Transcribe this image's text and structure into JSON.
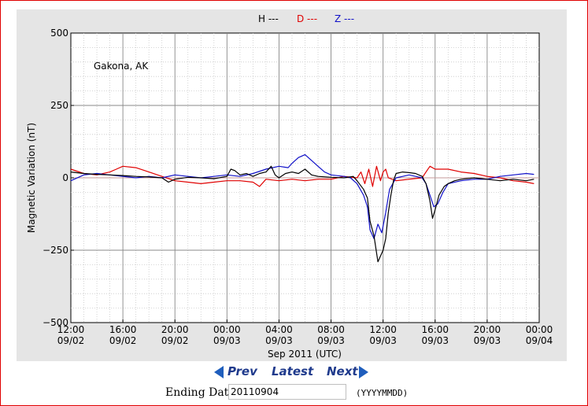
{
  "chart_data": {
    "type": "line",
    "station_label": "Gakona, AK",
    "ylabel": "Magnetic Variation (nT)",
    "xlabel": "Sep 2011 (UTC)",
    "ylim": [
      -500,
      500
    ],
    "yticks": [
      -500,
      -250,
      0,
      250,
      500
    ],
    "xlim": [
      0,
      36
    ],
    "xticks": [
      {
        "x": 0,
        "time": "12:00",
        "date": "09/02"
      },
      {
        "x": 4,
        "time": "16:00",
        "date": "09/02"
      },
      {
        "x": 8,
        "time": "20:00",
        "date": "09/02"
      },
      {
        "x": 12,
        "time": "00:00",
        "date": "09/03"
      },
      {
        "x": 16,
        "time": "04:00",
        "date": "09/03"
      },
      {
        "x": 20,
        "time": "08:00",
        "date": "09/03"
      },
      {
        "x": 24,
        "time": "12:00",
        "date": "09/03"
      },
      {
        "x": 28,
        "time": "16:00",
        "date": "09/03"
      },
      {
        "x": 32,
        "time": "20:00",
        "date": "09/03"
      },
      {
        "x": 36,
        "time": "00:00",
        "date": "09/04"
      }
    ],
    "grid": true,
    "legend_position": "top-center",
    "series": [
      {
        "name": "H",
        "legend_text": "H ---",
        "color": "#000000",
        "points": [
          [
            0,
            20
          ],
          [
            1,
            15
          ],
          [
            2,
            12
          ],
          [
            3,
            10
          ],
          [
            4,
            8
          ],
          [
            5,
            5
          ],
          [
            6,
            3
          ],
          [
            7,
            0
          ],
          [
            7.5,
            -15
          ],
          [
            8,
            -5
          ],
          [
            9,
            2
          ],
          [
            10,
            0
          ],
          [
            11,
            -3
          ],
          [
            12,
            5
          ],
          [
            12.3,
            30
          ],
          [
            12.6,
            25
          ],
          [
            13,
            10
          ],
          [
            13.5,
            15
          ],
          [
            14,
            5
          ],
          [
            14.5,
            15
          ],
          [
            15,
            20
          ],
          [
            15.4,
            40
          ],
          [
            15.7,
            10
          ],
          [
            16,
            0
          ],
          [
            16.5,
            15
          ],
          [
            17,
            20
          ],
          [
            17.5,
            15
          ],
          [
            18,
            30
          ],
          [
            18.5,
            10
          ],
          [
            19,
            5
          ],
          [
            20,
            2
          ],
          [
            21,
            0
          ],
          [
            21.7,
            5
          ],
          [
            22,
            -10
          ],
          [
            22.5,
            -40
          ],
          [
            22.8,
            -70
          ],
          [
            23,
            -150
          ],
          [
            23.3,
            -200
          ],
          [
            23.6,
            -290
          ],
          [
            23.8,
            -270
          ],
          [
            24,
            -250
          ],
          [
            24.2,
            -210
          ],
          [
            24.4,
            -120
          ],
          [
            24.6,
            -60
          ],
          [
            24.8,
            -10
          ],
          [
            25,
            15
          ],
          [
            25.5,
            20
          ],
          [
            26,
            18
          ],
          [
            26.5,
            15
          ],
          [
            27,
            5
          ],
          [
            27.3,
            -20
          ],
          [
            27.6,
            -80
          ],
          [
            27.8,
            -140
          ],
          [
            28,
            -110
          ],
          [
            28.3,
            -60
          ],
          [
            28.7,
            -30
          ],
          [
            29,
            -20
          ],
          [
            29.5,
            -10
          ],
          [
            30,
            -5
          ],
          [
            31,
            0
          ],
          [
            32,
            -5
          ],
          [
            33,
            -10
          ],
          [
            34,
            -5
          ],
          [
            35,
            -10
          ],
          [
            35.6,
            -5
          ]
        ]
      },
      {
        "name": "D",
        "legend_text": "D ---",
        "color": "#e00000",
        "points": [
          [
            0,
            30
          ],
          [
            1,
            15
          ],
          [
            2,
            10
          ],
          [
            3,
            20
          ],
          [
            3.5,
            30
          ],
          [
            4,
            40
          ],
          [
            5,
            35
          ],
          [
            6,
            20
          ],
          [
            7,
            5
          ],
          [
            8,
            -10
          ],
          [
            9,
            -15
          ],
          [
            10,
            -20
          ],
          [
            11,
            -15
          ],
          [
            12,
            -10
          ],
          [
            13,
            -10
          ],
          [
            14,
            -15
          ],
          [
            14.5,
            -30
          ],
          [
            15,
            -5
          ],
          [
            16,
            -10
          ],
          [
            17,
            -5
          ],
          [
            18,
            -10
          ],
          [
            19,
            -5
          ],
          [
            20,
            -5
          ],
          [
            21,
            5
          ],
          [
            22,
            0
          ],
          [
            22.3,
            20
          ],
          [
            22.6,
            -20
          ],
          [
            22.9,
            30
          ],
          [
            23.2,
            -30
          ],
          [
            23.5,
            40
          ],
          [
            23.8,
            -10
          ],
          [
            24,
            20
          ],
          [
            24.2,
            30
          ],
          [
            24.4,
            0
          ],
          [
            25,
            -10
          ],
          [
            26,
            -5
          ],
          [
            27,
            0
          ],
          [
            27.3,
            20
          ],
          [
            27.6,
            40
          ],
          [
            28,
            30
          ],
          [
            29,
            30
          ],
          [
            30,
            20
          ],
          [
            31,
            15
          ],
          [
            32,
            5
          ],
          [
            33,
            0
          ],
          [
            34,
            -10
          ],
          [
            35,
            -15
          ],
          [
            35.6,
            -20
          ]
        ]
      },
      {
        "name": "Z",
        "legend_text": "Z ---",
        "color": "#1010c8",
        "points": [
          [
            0,
            -10
          ],
          [
            1,
            10
          ],
          [
            2,
            15
          ],
          [
            3,
            10
          ],
          [
            4,
            5
          ],
          [
            5,
            0
          ],
          [
            6,
            5
          ],
          [
            7,
            0
          ],
          [
            8,
            10
          ],
          [
            9,
            5
          ],
          [
            10,
            0
          ],
          [
            11,
            5
          ],
          [
            12,
            10
          ],
          [
            13,
            5
          ],
          [
            14,
            15
          ],
          [
            15,
            30
          ],
          [
            16,
            40
          ],
          [
            16.7,
            35
          ],
          [
            17,
            50
          ],
          [
            17.5,
            70
          ],
          [
            18,
            80
          ],
          [
            18.5,
            60
          ],
          [
            19,
            40
          ],
          [
            19.5,
            20
          ],
          [
            20,
            10
          ],
          [
            21,
            5
          ],
          [
            21.5,
            0
          ],
          [
            22,
            -20
          ],
          [
            22.5,
            -60
          ],
          [
            22.8,
            -100
          ],
          [
            23,
            -180
          ],
          [
            23.3,
            -210
          ],
          [
            23.6,
            -160
          ],
          [
            23.9,
            -190
          ],
          [
            24.2,
            -120
          ],
          [
            24.5,
            -40
          ],
          [
            25,
            0
          ],
          [
            25.5,
            5
          ],
          [
            26,
            10
          ],
          [
            26.5,
            5
          ],
          [
            27,
            0
          ],
          [
            27.3,
            -20
          ],
          [
            27.6,
            -60
          ],
          [
            27.9,
            -100
          ],
          [
            28.2,
            -90
          ],
          [
            28.6,
            -50
          ],
          [
            29,
            -20
          ],
          [
            30,
            -10
          ],
          [
            31,
            -5
          ],
          [
            32,
            -5
          ],
          [
            33,
            5
          ],
          [
            34,
            10
          ],
          [
            35,
            15
          ],
          [
            35.6,
            12
          ]
        ]
      }
    ]
  },
  "nav": {
    "prev_label": "Prev",
    "latest_label": "Latest",
    "next_label": "Next"
  },
  "date_form": {
    "label": "Ending Date:",
    "value": "20110904",
    "format_hint": "(YYYYMMDD)"
  }
}
